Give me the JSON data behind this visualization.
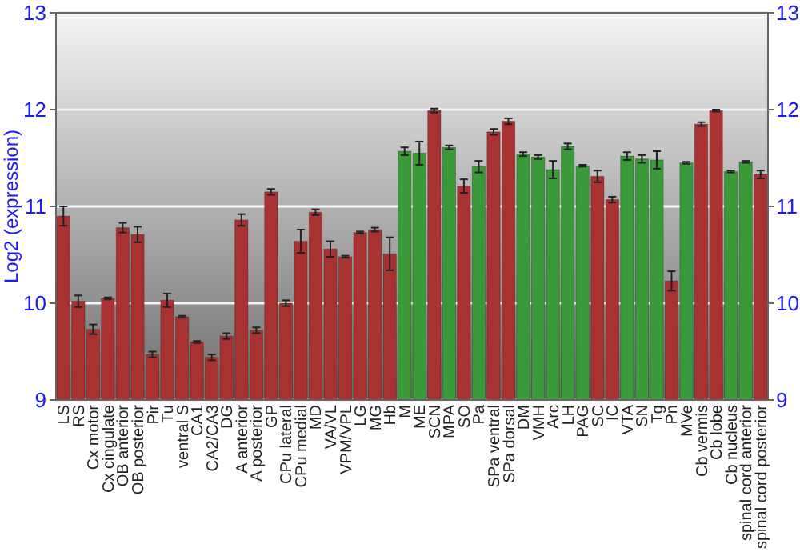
{
  "chart_data": {
    "type": "bar",
    "ylabel": "Log2 (expression)",
    "categories": [
      "LS",
      "RS",
      "Cx motor",
      "Cx cingulate",
      "OB anterior",
      "OB posterior",
      "Pir",
      "Tu",
      "ventral S",
      "CA1",
      "CA2/CA3",
      "DG",
      "A anterior",
      "A posterior",
      "GP",
      "CPu lateral",
      "CPu medial",
      "MD",
      "VA/VL",
      "VPM/VPL",
      "LG",
      "MG",
      "Hb",
      "M",
      "ME",
      "SCN",
      "MPA",
      "SO",
      "Pa",
      "SPa ventral",
      "SPa dorsal",
      "DM",
      "VMH",
      "Arc",
      "LH",
      "PAG",
      "SC",
      "IC",
      "VTA",
      "SN",
      "Tg",
      "Pn",
      "MVe",
      "Cb vermis",
      "Cb lobe",
      "Cb nucleus",
      "spinal cord anterior",
      "spinal cord posterior"
    ],
    "values": [
      10.9,
      10.02,
      9.73,
      10.05,
      10.78,
      10.71,
      9.47,
      10.03,
      9.86,
      9.6,
      9.44,
      9.66,
      10.86,
      9.72,
      11.15,
      10.0,
      10.64,
      10.94,
      10.56,
      10.48,
      10.73,
      10.76,
      10.51,
      11.57,
      11.55,
      11.99,
      11.61,
      11.21,
      11.41,
      11.77,
      11.88,
      11.54,
      11.51,
      11.38,
      11.62,
      11.42,
      11.31,
      11.07,
      11.52,
      11.49,
      11.48,
      10.23,
      11.45,
      11.85,
      11.99,
      11.36,
      11.46,
      11.33
    ],
    "errors": [
      0.1,
      0.06,
      0.05,
      0.01,
      0.05,
      0.08,
      0.03,
      0.07,
      0.01,
      0.01,
      0.03,
      0.03,
      0.06,
      0.03,
      0.03,
      0.03,
      0.12,
      0.03,
      0.08,
      0.01,
      0.01,
      0.02,
      0.17,
      0.04,
      0.12,
      0.02,
      0.02,
      0.07,
      0.06,
      0.03,
      0.03,
      0.02,
      0.02,
      0.09,
      0.03,
      0.01,
      0.06,
      0.03,
      0.04,
      0.04,
      0.09,
      0.1,
      0.01,
      0.02,
      0.01,
      0.01,
      0.01,
      0.04
    ],
    "colors": [
      "#a83232",
      "#a83232",
      "#a83232",
      "#a83232",
      "#a83232",
      "#a83232",
      "#a83232",
      "#a83232",
      "#a83232",
      "#a83232",
      "#a83232",
      "#a83232",
      "#a83232",
      "#a83232",
      "#a83232",
      "#a83232",
      "#a83232",
      "#a83232",
      "#a83232",
      "#a83232",
      "#a83232",
      "#a83232",
      "#a83232",
      "#3a9a3a",
      "#3a9a3a",
      "#a83232",
      "#3a9a3a",
      "#a83232",
      "#3a9a3a",
      "#a83232",
      "#a83232",
      "#3a9a3a",
      "#3a9a3a",
      "#3a9a3a",
      "#3a9a3a",
      "#3a9a3a",
      "#a83232",
      "#a83232",
      "#3a9a3a",
      "#3a9a3a",
      "#3a9a3a",
      "#a83232",
      "#3a9a3a",
      "#a83232",
      "#a83232",
      "#3a9a3a",
      "#3a9a3a",
      "#a83232"
    ],
    "ylim": [
      9,
      13
    ],
    "yticks": [
      9,
      10,
      11,
      12,
      13
    ],
    "y2lim": [
      9,
      13
    ],
    "y2ticks": [
      9,
      10,
      11,
      12,
      13
    ],
    "grid": "y"
  }
}
